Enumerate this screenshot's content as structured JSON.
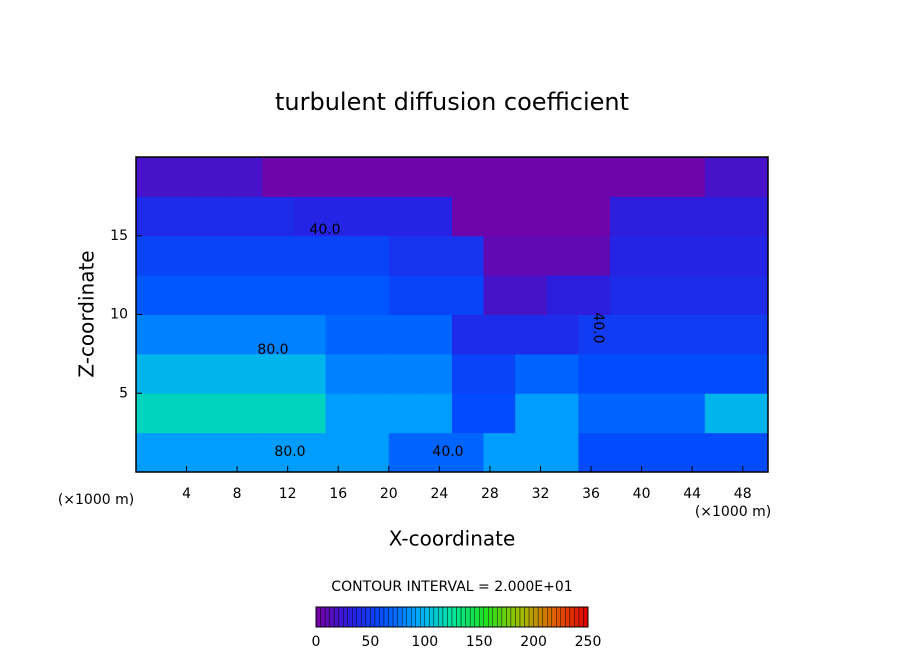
{
  "chart_data": {
    "type": "heatmap",
    "title": "turbulent diffusion coefficient",
    "xlabel": "X-coordinate",
    "ylabel": "Z-coordinate",
    "x_unit_left": "(×1000 m)",
    "x_unit_right": "(×1000 m)",
    "xlim": [
      0,
      50
    ],
    "ylim": [
      0,
      20
    ],
    "xticks": [
      4,
      8,
      12,
      16,
      20,
      24,
      28,
      32,
      36,
      40,
      44,
      48
    ],
    "yticks": [
      5,
      10,
      15
    ],
    "z": [
      [
        90,
        90,
        90,
        90,
        90,
        90,
        90,
        90,
        70,
        70,
        70,
        90,
        90,
        90,
        60,
        60,
        60,
        60,
        60,
        60
      ],
      [
        115,
        115,
        115,
        115,
        115,
        115,
        90,
        90,
        90,
        90,
        60,
        60,
        90,
        90,
        70,
        70,
        70,
        70,
        100,
        100
      ],
      [
        100,
        100,
        100,
        100,
        100,
        100,
        80,
        80,
        80,
        80,
        55,
        55,
        70,
        70,
        60,
        60,
        60,
        60,
        60,
        60
      ],
      [
        80,
        80,
        80,
        80,
        80,
        80,
        70,
        70,
        70,
        70,
        40,
        40,
        40,
        40,
        50,
        50,
        50,
        50,
        50,
        50
      ],
      [
        65,
        65,
        65,
        65,
        65,
        65,
        65,
        65,
        55,
        55,
        55,
        20,
        20,
        30,
        30,
        40,
        40,
        40,
        40,
        40
      ],
      [
        55,
        55,
        55,
        55,
        55,
        55,
        55,
        55,
        45,
        45,
        45,
        10,
        10,
        10,
        10,
        35,
        35,
        35,
        35,
        35
      ],
      [
        40,
        40,
        40,
        40,
        40,
        35,
        35,
        35,
        35,
        35,
        5,
        5,
        5,
        5,
        5,
        30,
        30,
        30,
        30,
        30
      ],
      [
        20,
        20,
        20,
        20,
        5,
        5,
        5,
        5,
        5,
        5,
        5,
        5,
        5,
        5,
        5,
        5,
        5,
        5,
        20,
        20
      ]
    ],
    "contour_labels": [
      {
        "value": 40,
        "label": "40.0"
      },
      {
        "value": 80,
        "label": "80.0"
      },
      {
        "value": 80,
        "label": "80.0"
      },
      {
        "value": 40,
        "label": "40.0"
      },
      {
        "value": 40,
        "label": "40.0"
      }
    ],
    "contour_interval_text": "CONTOUR INTERVAL = 2.000E+01",
    "clim": [
      0,
      250
    ],
    "cticks": [
      0,
      50,
      100,
      150,
      200,
      250
    ],
    "colormap": [
      "#7a00a0",
      "#2a1ee0",
      "#0050ff",
      "#00a8ff",
      "#00e8a0",
      "#20e020",
      "#a0c000",
      "#e06000",
      "#e00000"
    ]
  }
}
